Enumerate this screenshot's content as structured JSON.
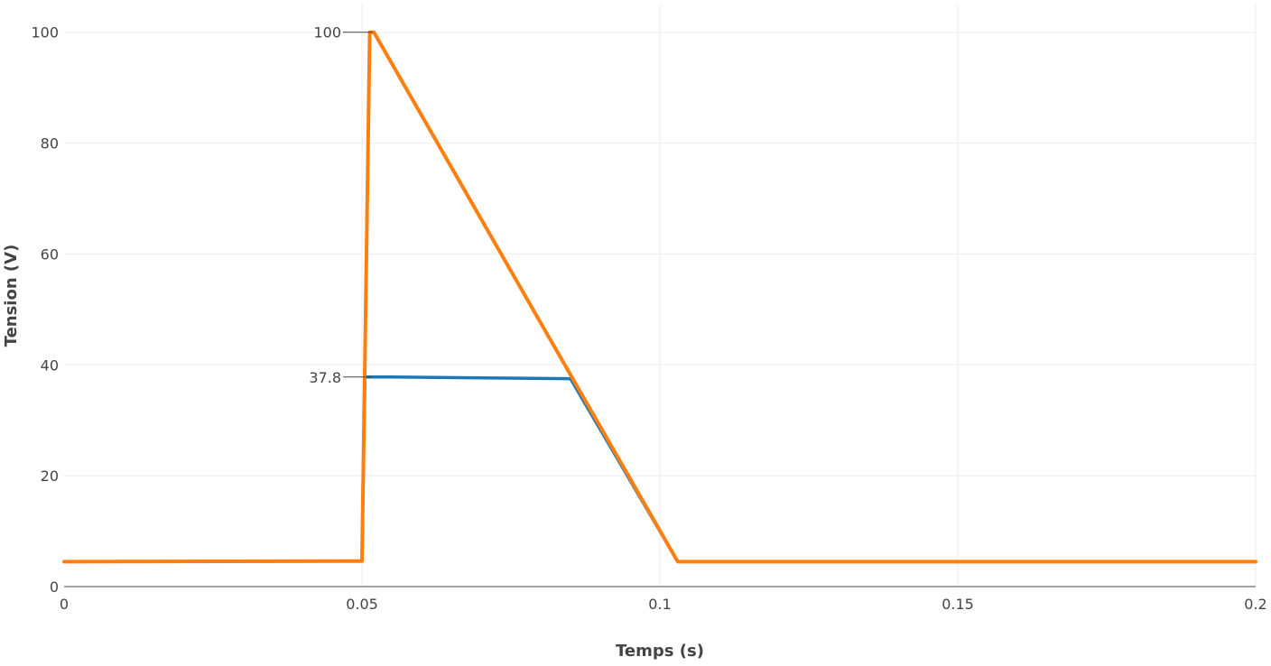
{
  "chart_data": {
    "type": "line",
    "title": "",
    "xlabel": "Temps (s)",
    "ylabel": "Tension (V)",
    "xlim": [
      0,
      0.2
    ],
    "ylim": [
      0,
      105
    ],
    "x_ticks": [
      0,
      0.05,
      0.1,
      0.15,
      0.2
    ],
    "x_tick_labels": [
      "0",
      "0.05",
      "0.1",
      "0.15",
      "0.2"
    ],
    "y_ticks": [
      0,
      20,
      40,
      60,
      80,
      100
    ],
    "y_tick_labels": [
      "0",
      "20",
      "40",
      "60",
      "80",
      "100"
    ],
    "grid": true,
    "legend": "none",
    "series": [
      {
        "color": "#1f77b4",
        "x": [
          0,
          0.05,
          0.0502,
          0.0505,
          0.051,
          0.055,
          0.085,
          0.103,
          0.2
        ],
        "y": [
          4.5,
          4.6,
          20.0,
          37.8,
          37.8,
          37.8,
          37.5,
          4.5,
          4.5
        ]
      },
      {
        "color": "#ff7f0e",
        "x": [
          0,
          0.05,
          0.0513,
          0.052,
          0.103,
          0.2
        ],
        "y": [
          4.5,
          4.6,
          100,
          100,
          4.5,
          4.5
        ]
      }
    ],
    "annotations": [
      {
        "label": "100",
        "y": 100
      },
      {
        "label": "37.8",
        "y": 37.8
      }
    ]
  }
}
